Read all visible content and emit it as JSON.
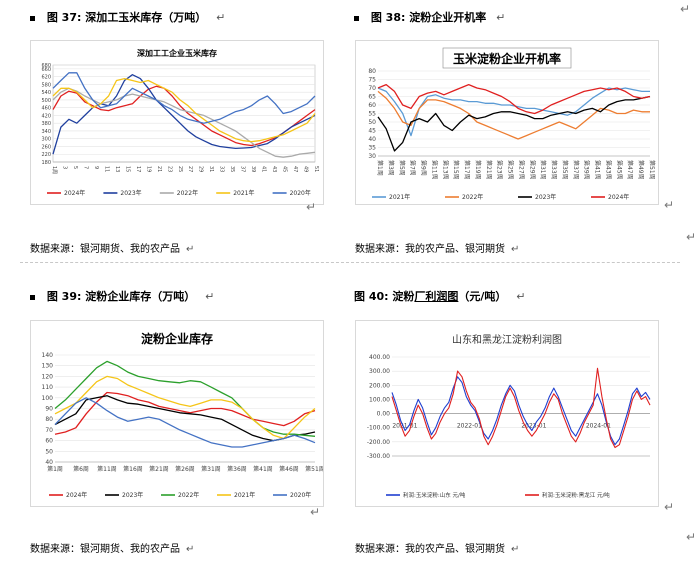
{
  "figures": [
    {
      "number": "图 37:",
      "title": "深加工玉米库存（万吨）",
      "source": "数据来源：银河期货、我的农产品"
    },
    {
      "number": "图 38:",
      "title": "淀粉企业开机率",
      "source": "数据来源：我的农产品、银河期货"
    },
    {
      "number": "图 39:",
      "title": "淀粉企业库存（万吨）",
      "source": "数据来源：银河期货、我的农产品"
    },
    {
      "number": "图 40:",
      "title_pre": "淀粉",
      "title_link": "厂利润图",
      "title_post": "（元/吨）",
      "source": "数据来源：我的农产品、银河期货"
    }
  ],
  "chart_data": [
    {
      "type": "line",
      "title": "深加工工企业玉米库存",
      "ylim": [
        180,
        680
      ],
      "yticks": [
        "180",
        "220",
        "260",
        "300",
        "340",
        "380",
        "420",
        "460",
        "500",
        "540",
        "580",
        "620",
        "660",
        "680"
      ],
      "xticks": [
        "1周",
        "3",
        "5",
        "7",
        "9",
        "11",
        "13",
        "15",
        "17",
        "19",
        "21",
        "23",
        "25",
        "27",
        "29",
        "31",
        "33",
        "35",
        "37",
        "39",
        "41",
        "43",
        "45",
        "47",
        "49",
        "51"
      ],
      "colors": {
        "2024年": "#e02020",
        "2023年": "#1f3f9e",
        "2022年": "#aaaaaa",
        "2021年": "#f5c518",
        "2020年": "#4472c4"
      },
      "series": [
        {
          "name": "2024年",
          "values": [
            450,
            520,
            545,
            535,
            490,
            470,
            450,
            445,
            460,
            470,
            480,
            520,
            555,
            570,
            560,
            520,
            470,
            430,
            400,
            370,
            340,
            320,
            300,
            280,
            270,
            265,
            275,
            290,
            305,
            330,
            360,
            390,
            420,
            450
          ]
        },
        {
          "name": "2023年",
          "values": [
            220,
            360,
            400,
            380,
            420,
            460,
            480,
            470,
            520,
            600,
            630,
            610,
            560,
            500,
            460,
            420,
            380,
            340,
            310,
            290,
            270,
            260,
            255,
            250,
            252,
            255,
            265,
            275,
            300,
            330,
            360,
            380,
            400,
            420
          ]
        },
        {
          "name": "2022年",
          "values": [
            500,
            540,
            560,
            545,
            520,
            500,
            480,
            490,
            500,
            520,
            530,
            520,
            510,
            500,
            490,
            470,
            450,
            440,
            430,
            420,
            400,
            380,
            360,
            340,
            310,
            280,
            250,
            230,
            210,
            205,
            210,
            220,
            225,
            230
          ]
        },
        {
          "name": "2021年",
          "values": [
            520,
            560,
            560,
            540,
            500,
            460,
            480,
            520,
            600,
            610,
            600,
            590,
            600,
            580,
            560,
            540,
            500,
            470,
            430,
            400,
            370,
            340,
            320,
            300,
            290,
            285,
            290,
            300,
            310,
            320,
            340,
            360,
            380,
            430
          ]
        },
        {
          "name": "2020年",
          "values": [
            560,
            600,
            640,
            640,
            560,
            500,
            460,
            470,
            480,
            520,
            560,
            540,
            520,
            500,
            470,
            450,
            420,
            400,
            390,
            380,
            390,
            400,
            420,
            440,
            450,
            470,
            500,
            520,
            480,
            430,
            440,
            460,
            480,
            520
          ]
        }
      ]
    },
    {
      "type": "line",
      "title": "玉米淀粉企业开机率",
      "ylim": [
        30,
        80
      ],
      "yticks": [
        "30",
        "35",
        "40",
        "45",
        "50",
        "55",
        "60",
        "65",
        "70",
        "75",
        "80"
      ],
      "xticks": [
        "第1周",
        "第3周",
        "第5周",
        "第7周",
        "第9周",
        "第11周",
        "第13周",
        "第15周",
        "第17周",
        "第19周",
        "第21周",
        "第23周",
        "第25周",
        "第27周",
        "第29周",
        "第31周",
        "第33周",
        "第35周",
        "第37周",
        "第39周",
        "第41周",
        "第43周",
        "第45周",
        "第47周",
        "第49周",
        "第51周"
      ],
      "colors": {
        "2021年": "#5b9bd5",
        "2022年": "#ed7d31",
        "2023年": "#000000",
        "2024年": "#e02020"
      },
      "series": [
        {
          "name": "2021年",
          "values": [
            70,
            68,
            62,
            55,
            42,
            58,
            65,
            66,
            64,
            63,
            63,
            62,
            62,
            61,
            61,
            60,
            60,
            59,
            58,
            58,
            57,
            56,
            55,
            54,
            56,
            60,
            64,
            67,
            70,
            69,
            70,
            69,
            68,
            68
          ]
        },
        {
          "name": "2022年",
          "values": [
            68,
            64,
            58,
            50,
            48,
            58,
            63,
            63,
            62,
            60,
            58,
            55,
            50,
            48,
            46,
            44,
            42,
            40,
            42,
            44,
            46,
            48,
            50,
            48,
            46,
            50,
            54,
            58,
            57,
            55,
            55,
            57,
            56,
            56
          ]
        },
        {
          "name": "2023年",
          "values": [
            53,
            46,
            33,
            38,
            50,
            52,
            50,
            55,
            48,
            45,
            50,
            54,
            52,
            53,
            55,
            56,
            56,
            55,
            54,
            52,
            52,
            54,
            55,
            56,
            55,
            57,
            58,
            56,
            60,
            62,
            63,
            63,
            64,
            65
          ]
        },
        {
          "name": "2024年",
          "values": [
            70,
            72,
            68,
            60,
            58,
            65,
            67,
            68,
            66,
            68,
            70,
            72,
            70,
            69,
            67,
            65,
            62,
            58,
            56,
            55,
            57,
            60,
            62,
            64,
            66,
            68,
            69,
            70,
            69,
            70,
            68,
            65,
            64,
            65
          ]
        }
      ]
    },
    {
      "type": "line",
      "title": "淀粉企业库存",
      "ylim": [
        40,
        140
      ],
      "yticks": [
        "40",
        "50",
        "60",
        "70",
        "80",
        "90",
        "100",
        "110",
        "120",
        "130",
        "140"
      ],
      "xticks": [
        "第1周",
        "第6周",
        "第11周",
        "第16周",
        "第21周",
        "第26周",
        "第31周",
        "第36周",
        "第41周",
        "第46周",
        "第51周"
      ],
      "colors": {
        "2024年": "#e02020",
        "2023年": "#000000",
        "2022年": "#2ca02c",
        "2021年": "#f5c518",
        "2020年": "#4472c4"
      },
      "series": [
        {
          "name": "2024年",
          "values": [
            66,
            68,
            72,
            85,
            96,
            105,
            104,
            102,
            98,
            96,
            92,
            90,
            88,
            86,
            88,
            90,
            90,
            88,
            84,
            80,
            78,
            76,
            74,
            78,
            85,
            88
          ]
        },
        {
          "name": "2023年",
          "values": [
            75,
            80,
            85,
            98,
            100,
            102,
            98,
            95,
            94,
            92,
            90,
            88,
            86,
            85,
            84,
            82,
            80,
            75,
            70,
            65,
            62,
            60,
            62,
            65,
            66,
            68
          ]
        },
        {
          "name": "2022年",
          "values": [
            90,
            98,
            108,
            118,
            128,
            134,
            130,
            124,
            120,
            118,
            116,
            115,
            114,
            116,
            115,
            110,
            105,
            100,
            90,
            80,
            72,
            68,
            66,
            66,
            65,
            64
          ]
        },
        {
          "name": "2021年",
          "values": [
            85,
            90,
            95,
            105,
            115,
            120,
            118,
            112,
            108,
            104,
            100,
            97,
            94,
            92,
            95,
            98,
            98,
            96,
            90,
            80,
            72,
            65,
            62,
            72,
            82,
            90
          ]
        },
        {
          "name": "2020年",
          "values": [
            75,
            85,
            95,
            100,
            95,
            88,
            82,
            78,
            80,
            82,
            80,
            75,
            70,
            66,
            62,
            58,
            56,
            54,
            54,
            56,
            58,
            60,
            62,
            65,
            62,
            58
          ]
        }
      ]
    },
    {
      "type": "line",
      "title": "山东和黑龙江淀粉利润图",
      "ylim": [
        -300,
        400
      ],
      "yticks": [
        "-300.00",
        "-200.00",
        "-100.00",
        "0.00",
        "100.00",
        "200.00",
        "300.00",
        "400.00"
      ],
      "xticks": [
        "2021-01",
        "2022-01",
        "2023-01",
        "2024-01"
      ],
      "colors": {
        "利润:玉米淀粉:山东 元/吨": "#1f3fd0",
        "利润:玉米淀粉:黑龙江 元/吨": "#e02020"
      },
      "series": [
        {
          "name": "利润:玉米淀粉:山东 元/吨",
          "values": [
            150,
            60,
            -50,
            -120,
            -80,
            20,
            100,
            40,
            -60,
            -150,
            -100,
            -20,
            40,
            80,
            180,
            260,
            220,
            120,
            60,
            20,
            -60,
            -140,
            -180,
            -120,
            -40,
            60,
            140,
            200,
            160,
            60,
            -20,
            -80,
            -120,
            -60,
            -20,
            40,
            120,
            180,
            120,
            40,
            -40,
            -120,
            -160,
            -100,
            -40,
            20,
            80,
            140,
            60,
            -60,
            -160,
            -220,
            -180,
            -80,
            20,
            140,
            180,
            120,
            150,
            100
          ]
        },
        {
          "name": "利润:玉米淀粉:黑龙江 元/吨",
          "values": [
            120,
            20,
            -80,
            -160,
            -120,
            -20,
            60,
            0,
            -100,
            -180,
            -140,
            -60,
            0,
            40,
            140,
            300,
            260,
            160,
            80,
            40,
            -40,
            -160,
            -220,
            -160,
            -80,
            20,
            120,
            180,
            120,
            20,
            -60,
            -120,
            -160,
            -120,
            -60,
            0,
            80,
            140,
            100,
            0,
            -80,
            -160,
            -200,
            -140,
            -60,
            0,
            60,
            320,
            120,
            -40,
            -180,
            -240,
            -220,
            -120,
            -20,
            100,
            160,
            100,
            120,
            60
          ]
        }
      ]
    }
  ]
}
